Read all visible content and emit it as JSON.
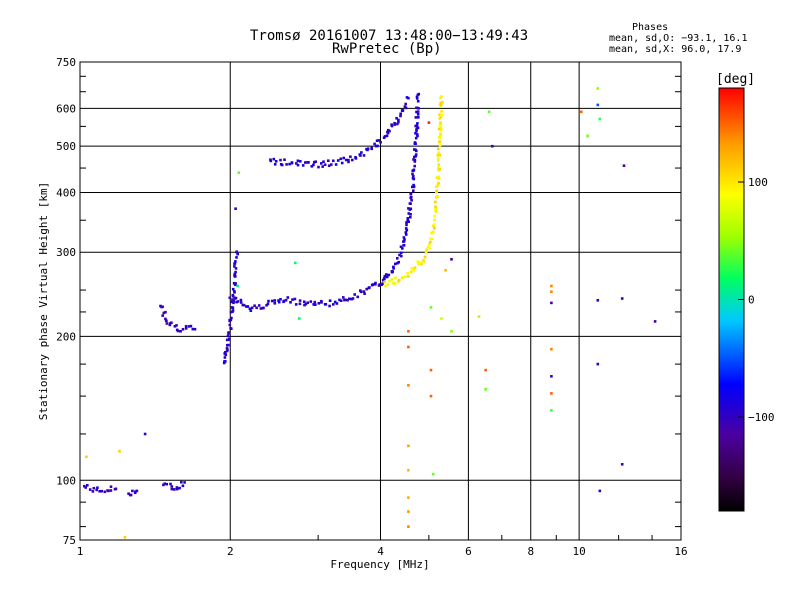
{
  "header": {
    "title_line1": "Tromsø 20161007 13:48:00−13:49:43",
    "title_line2": "RwPretec (Bp)",
    "phases_title": "Phases",
    "phases_o": "mean, sd,O: −93.1, 16.1",
    "phases_x": "mean, sd,X:  96.0, 17.9"
  },
  "chart_data": {
    "type": "scatter",
    "xlabel": "Frequency [MHz]",
    "ylabel": "Stationary phase Virtual Height [km]",
    "x_scale": "log",
    "y_scale": "log",
    "xlim": [
      1,
      16
    ],
    "ylim": [
      75,
      750
    ],
    "x_ticks": [
      1,
      2,
      4,
      6,
      8,
      10,
      16
    ],
    "x_tick_labels": [
      "1",
      "2",
      "4",
      "6",
      "8",
      "10",
      "16"
    ],
    "y_ticks": [
      75,
      100,
      200,
      300,
      400,
      500,
      600,
      750
    ],
    "y_tick_labels": [
      "75",
      "100",
      "200",
      "300",
      "400",
      "500",
      "600",
      "750"
    ],
    "grid": true,
    "colorbar": {
      "label": "[deg]",
      "range": [
        -180,
        180
      ],
      "ticks": [
        100,
        0,
        -100
      ],
      "tick_labels": [
        "100",
        "0",
        "−100"
      ],
      "colormap": "rainbow (black → purple → blue → cyan → green → yellow → orange → red)"
    },
    "series": [
      {
        "trace": "low-frequency echoes",
        "phase": -100,
        "segments": [
          {
            "x": [
              1.02,
              1.1,
              1.18
            ],
            "y": [
              97,
              95,
              96
            ]
          },
          {
            "x": [
              1.25,
              1.3
            ],
            "y": [
              94,
              95
            ]
          },
          {
            "x": [
              1.47,
              1.55,
              1.62
            ],
            "y": [
              98,
              96,
              99
            ]
          }
        ]
      },
      {
        "trace": "E-layer trace",
        "phase": -100,
        "segments": [
          {
            "x": [
              1.45,
              1.5,
              1.58,
              1.7
            ],
            "y": [
              232,
              215,
              208,
              207
            ]
          }
        ]
      },
      {
        "trace": "O-mode F trace",
        "phase": -93,
        "segments": [
          {
            "x": [
              1.94,
              1.97,
              2.0,
              2.03,
              2.06
            ],
            "y": [
              175,
              190,
              210,
              240,
              300
            ]
          },
          {
            "x": [
              2.0,
              2.1,
              2.2,
              2.4,
              2.6,
              2.8,
              3.0,
              3.3,
              3.6,
              3.9,
              4.05
            ],
            "y": [
              240,
              238,
              228,
              235,
              238,
              236,
              234,
              236,
              245,
              255,
              262
            ]
          },
          {
            "x": [
              4.05,
              4.2,
              4.4,
              4.55,
              4.65,
              4.72,
              4.75
            ],
            "y": [
              262,
              272,
              300,
              350,
              420,
              520,
              640
            ]
          },
          {
            "x": [
              2.4,
              2.6,
              2.9,
              3.2,
              3.5,
              3.8,
              4.1,
              4.35,
              4.55
            ],
            "y": [
              465,
              462,
              458,
              460,
              470,
              490,
              525,
              570,
              630
            ]
          }
        ]
      },
      {
        "trace": "X-mode F trace",
        "phase": 96,
        "segments": [
          {
            "x": [
              4.05,
              4.3,
              4.6,
              4.9,
              5.1,
              5.2,
              5.25,
              5.3
            ],
            "y": [
              258,
              262,
              272,
              290,
              330,
              400,
              500,
              635
            ]
          }
        ]
      },
      {
        "trace": "scattered points",
        "segments": [],
        "points": [
          {
            "x": 1.03,
            "y": 112,
            "phase": 110
          },
          {
            "x": 1.2,
            "y": 115,
            "phase": 110
          },
          {
            "x": 1.35,
            "y": 125,
            "phase": -100
          },
          {
            "x": 1.23,
            "y": 76,
            "phase": 110
          },
          {
            "x": 2.05,
            "y": 370,
            "phase": -100
          },
          {
            "x": 2.08,
            "y": 440,
            "phase": 40
          },
          {
            "x": 2.7,
            "y": 285,
            "phase": 20
          },
          {
            "x": 2.75,
            "y": 218,
            "phase": 20
          },
          {
            "x": 2.07,
            "y": 255,
            "phase": 10
          },
          {
            "x": 4.55,
            "y": 205,
            "phase": 150
          },
          {
            "x": 4.55,
            "y": 190,
            "phase": 150
          },
          {
            "x": 4.55,
            "y": 158,
            "phase": 140
          },
          {
            "x": 4.55,
            "y": 118,
            "phase": 130
          },
          {
            "x": 4.55,
            "y": 105,
            "phase": 120
          },
          {
            "x": 4.55,
            "y": 92,
            "phase": 125
          },
          {
            "x": 4.55,
            "y": 86,
            "phase": 135
          },
          {
            "x": 4.55,
            "y": 80,
            "phase": 140
          },
          {
            "x": 5.0,
            "y": 560,
            "phase": 170
          },
          {
            "x": 5.05,
            "y": 230,
            "phase": 40
          },
          {
            "x": 5.05,
            "y": 170,
            "phase": 150
          },
          {
            "x": 5.05,
            "y": 150,
            "phase": 150
          },
          {
            "x": 5.3,
            "y": 218,
            "phase": 70
          },
          {
            "x": 5.4,
            "y": 275,
            "phase": 120
          },
          {
            "x": 5.55,
            "y": 205,
            "phase": 50
          },
          {
            "x": 5.55,
            "y": 290,
            "phase": -120
          },
          {
            "x": 5.1,
            "y": 103,
            "phase": 40
          },
          {
            "x": 6.3,
            "y": 220,
            "phase": 60
          },
          {
            "x": 6.5,
            "y": 170,
            "phase": 150
          },
          {
            "x": 6.5,
            "y": 155,
            "phase": 40
          },
          {
            "x": 6.6,
            "y": 590,
            "phase": 40
          },
          {
            "x": 6.7,
            "y": 500,
            "phase": -100
          },
          {
            "x": 8.8,
            "y": 255,
            "phase": 140
          },
          {
            "x": 8.8,
            "y": 248,
            "phase": 140
          },
          {
            "x": 8.8,
            "y": 235,
            "phase": -110
          },
          {
            "x": 8.8,
            "y": 188,
            "phase": 140
          },
          {
            "x": 8.8,
            "y": 165,
            "phase": -100
          },
          {
            "x": 8.8,
            "y": 152,
            "phase": 150
          },
          {
            "x": 8.8,
            "y": 140,
            "phase": 30
          },
          {
            "x": 10.1,
            "y": 590,
            "phase": 150
          },
          {
            "x": 10.4,
            "y": 525,
            "phase": 40
          },
          {
            "x": 10.9,
            "y": 660,
            "phase": 50
          },
          {
            "x": 10.9,
            "y": 610,
            "phase": -50
          },
          {
            "x": 11.0,
            "y": 570,
            "phase": 30
          },
          {
            "x": 10.9,
            "y": 238,
            "phase": -100
          },
          {
            "x": 10.9,
            "y": 175,
            "phase": -100
          },
          {
            "x": 11.0,
            "y": 95,
            "phase": -100
          },
          {
            "x": 12.2,
            "y": 240,
            "phase": -110
          },
          {
            "x": 12.3,
            "y": 455,
            "phase": -110
          },
          {
            "x": 12.2,
            "y": 108,
            "phase": -110
          },
          {
            "x": 14.2,
            "y": 215,
            "phase": -110
          }
        ]
      }
    ]
  }
}
